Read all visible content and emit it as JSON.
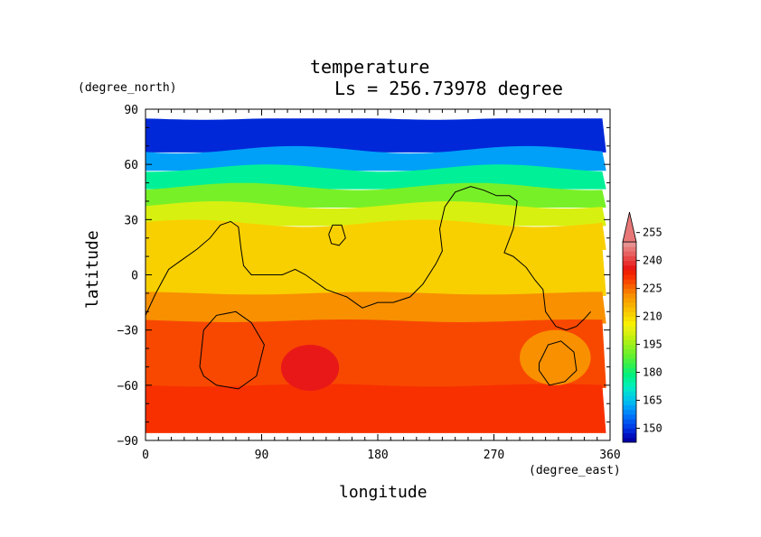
{
  "chart_data": {
    "type": "heatmap",
    "title": "temperature",
    "subtitle": "Ls = 256.73978 degree",
    "xlabel": "longitude",
    "ylabel": "latitude",
    "xunit": "(degree_east)",
    "yunit": "(degree_north)",
    "xlim": [
      0,
      360
    ],
    "ylim": [
      -90,
      90
    ],
    "data_extent": {
      "lon": [
        0,
        357
      ],
      "lat": [
        -86,
        85
      ]
    },
    "x_ticks": [
      0,
      90,
      180,
      270,
      360
    ],
    "y_ticks": [
      90,
      60,
      30,
      0,
      -30,
      -60,
      -90
    ],
    "y_tick_labels": [
      "90",
      "60",
      "30",
      "0",
      "−30",
      "−60",
      "−90"
    ],
    "colorbar": {
      "labels": [
        150,
        165,
        180,
        195,
        210,
        225,
        240,
        255
      ],
      "levels": [
        142.5,
        145,
        147.5,
        150,
        152.5,
        155,
        157.5,
        160,
        162.5,
        165,
        167.5,
        170,
        172.5,
        175,
        177.5,
        180,
        182.5,
        185,
        187.5,
        190,
        192.5,
        195,
        197.5,
        200,
        202.5,
        205,
        207.5,
        210,
        212.5,
        215,
        217.5,
        220,
        222.5,
        225,
        227.5,
        230,
        232.5,
        235,
        237.5,
        240,
        242.5,
        245,
        247.5,
        250,
        252.5,
        255,
        257.5,
        260
      ],
      "colors": [
        "#0000a8",
        "#0010c0",
        "#0028d8",
        "#0040e8",
        "#0058f0",
        "#0070f8",
        "#0088f8",
        "#00a0f8",
        "#00b8f0",
        "#00c8e8",
        "#00d8d8",
        "#00e8c8",
        "#00f0b0",
        "#00f098",
        "#00f080",
        "#18f068",
        "#30f050",
        "#48f040",
        "#60f030",
        "#78f028",
        "#90f020",
        "#a8f018",
        "#c0f010",
        "#d8f010",
        "#e8f010",
        "#f8f000",
        "#f8e000",
        "#f8d000",
        "#f8c000",
        "#f8b000",
        "#f8a000",
        "#f89000",
        "#f87800",
        "#f86000",
        "#f84800",
        "#f83000",
        "#f02000",
        "#e81818",
        "#e83030",
        "#e84848",
        "#e86060",
        "#e87878",
        "#e89090"
      ],
      "overflow_color": "#e87878"
    },
    "field": {
      "lat_bands": [
        {
          "lat": [
            85,
            68
          ],
          "temp": 148,
          "note": "dark blue polar cap"
        },
        {
          "lat": [
            68,
            58
          ],
          "temp": 160
        },
        {
          "lat": [
            58,
            48
          ],
          "temp": 175
        },
        {
          "lat": [
            48,
            38
          ],
          "temp": 190
        },
        {
          "lat": [
            38,
            28
          ],
          "temp": 200
        },
        {
          "lat": [
            28,
            15
          ],
          "temp": 210
        },
        {
          "lat": [
            15,
            -10
          ],
          "temp": 212
        },
        {
          "lat": [
            -10,
            -25
          ],
          "temp": 222
        },
        {
          "lat": [
            -25,
            -60
          ],
          "temp": 228
        },
        {
          "lat": [
            -60,
            -86
          ],
          "temp": 230
        }
      ],
      "features": [
        {
          "name": "warm anomaly",
          "lon": [
            105,
            150
          ],
          "lat": [
            -38,
            -63
          ],
          "temp": 235
        },
        {
          "name": "cool anomaly",
          "lon": [
            290,
            345
          ],
          "lat": [
            -30,
            -60
          ],
          "temp": 222
        }
      ]
    },
    "contour_level": 210
  }
}
